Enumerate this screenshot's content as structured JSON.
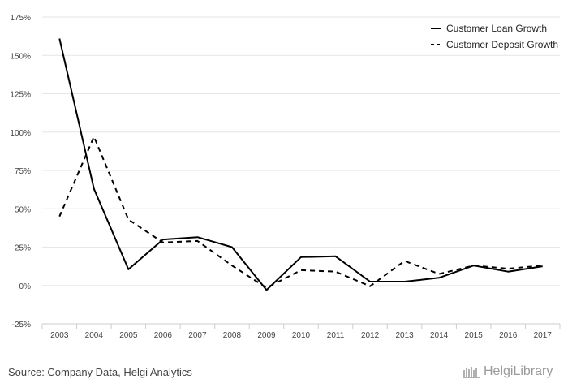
{
  "chart_data": {
    "type": "line",
    "x": [
      "2003",
      "2004",
      "2005",
      "2006",
      "2007",
      "2008",
      "2009",
      "2010",
      "2011",
      "2012",
      "2013",
      "2014",
      "2015",
      "2016",
      "2017"
    ],
    "series": [
      {
        "name": "Customer Loan Growth",
        "style": "solid",
        "values": [
          161,
          63,
          10.5,
          30,
          31.5,
          25,
          -3,
          18.5,
          19,
          2.5,
          2.5,
          5,
          13,
          9,
          12.5
        ]
      },
      {
        "name": "Customer Deposit Growth",
        "style": "dashed",
        "values": [
          45,
          97,
          43,
          28,
          29,
          13,
          -1.5,
          10,
          9,
          -0.5,
          16,
          7.5,
          13,
          11,
          13
        ]
      }
    ],
    "yticks": [
      175,
      150,
      125,
      100,
      75,
      50,
      25,
      0,
      -25
    ],
    "ytick_labels": [
      "175%",
      "150%",
      "125%",
      "100%",
      "75%",
      "50%",
      "25%",
      "0%",
      "-25%"
    ],
    "ylim": [
      -25,
      175
    ],
    "legend": "top-right",
    "grid": true,
    "line_color": "#000000",
    "grid_color": "#e6e6e6"
  },
  "footer": {
    "source": "Source: Company Data, Helgi Analytics",
    "logo_text": "HelgiLibrary"
  }
}
